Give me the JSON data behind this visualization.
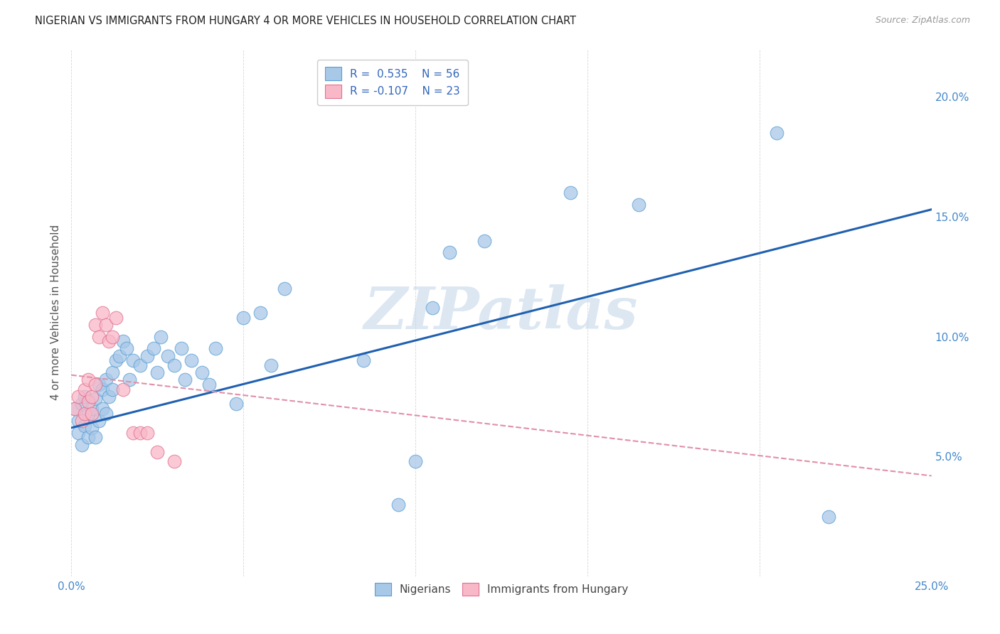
{
  "title": "NIGERIAN VS IMMIGRANTS FROM HUNGARY 4 OR MORE VEHICLES IN HOUSEHOLD CORRELATION CHART",
  "source": "Source: ZipAtlas.com",
  "ylabel": "4 or more Vehicles in Household",
  "xmin": 0.0,
  "xmax": 0.25,
  "ymin": 0.0,
  "ymax": 0.22,
  "yticks": [
    0.05,
    0.1,
    0.15,
    0.2
  ],
  "ytick_labels": [
    "5.0%",
    "10.0%",
    "15.0%",
    "20.0%"
  ],
  "nigerian_color": "#a8c8e8",
  "nigerian_edge_color": "#5a9fd4",
  "hungary_color": "#f9b8c8",
  "hungary_edge_color": "#e07090",
  "nigerian_line_color": "#2060b0",
  "hungary_line_color": "#e090a8",
  "watermark": "ZIPatlas",
  "nig_line_start_y": 0.062,
  "nig_line_end_y": 0.153,
  "hun_line_start_y": 0.084,
  "hun_line_end_y": 0.042,
  "nigerian_x": [
    0.001,
    0.002,
    0.002,
    0.003,
    0.003,
    0.004,
    0.004,
    0.005,
    0.005,
    0.006,
    0.006,
    0.007,
    0.007,
    0.008,
    0.008,
    0.009,
    0.009,
    0.01,
    0.01,
    0.011,
    0.012,
    0.012,
    0.013,
    0.014,
    0.015,
    0.016,
    0.017,
    0.018,
    0.02,
    0.022,
    0.024,
    0.025,
    0.026,
    0.028,
    0.03,
    0.032,
    0.033,
    0.035,
    0.038,
    0.04,
    0.042,
    0.048,
    0.05,
    0.055,
    0.058,
    0.062,
    0.085,
    0.095,
    0.1,
    0.105,
    0.11,
    0.12,
    0.145,
    0.165,
    0.205,
    0.22
  ],
  "nigerian_y": [
    0.07,
    0.065,
    0.06,
    0.072,
    0.055,
    0.063,
    0.075,
    0.058,
    0.068,
    0.062,
    0.07,
    0.058,
    0.074,
    0.065,
    0.08,
    0.07,
    0.078,
    0.068,
    0.082,
    0.075,
    0.085,
    0.078,
    0.09,
    0.092,
    0.098,
    0.095,
    0.082,
    0.09,
    0.088,
    0.092,
    0.095,
    0.085,
    0.1,
    0.092,
    0.088,
    0.095,
    0.082,
    0.09,
    0.085,
    0.08,
    0.095,
    0.072,
    0.108,
    0.11,
    0.088,
    0.12,
    0.09,
    0.03,
    0.048,
    0.112,
    0.135,
    0.14,
    0.16,
    0.155,
    0.185,
    0.025
  ],
  "hungary_x": [
    0.001,
    0.002,
    0.003,
    0.004,
    0.004,
    0.005,
    0.005,
    0.006,
    0.006,
    0.007,
    0.007,
    0.008,
    0.009,
    0.01,
    0.011,
    0.012,
    0.013,
    0.015,
    0.018,
    0.02,
    0.022,
    0.025,
    0.03
  ],
  "hungary_y": [
    0.07,
    0.075,
    0.065,
    0.078,
    0.068,
    0.073,
    0.082,
    0.068,
    0.075,
    0.08,
    0.105,
    0.1,
    0.11,
    0.105,
    0.098,
    0.1,
    0.108,
    0.078,
    0.06,
    0.06,
    0.06,
    0.052,
    0.048
  ]
}
